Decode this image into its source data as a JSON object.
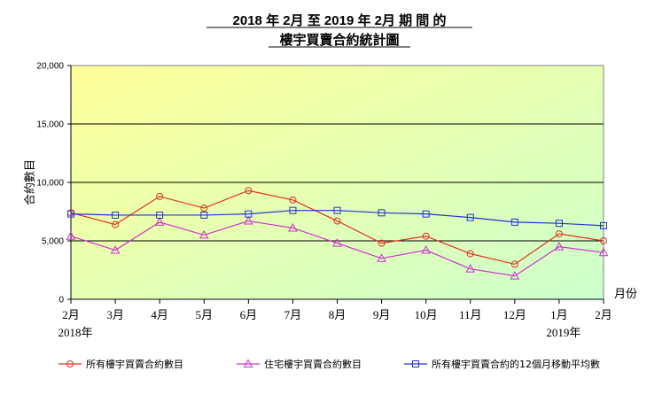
{
  "chart_data": {
    "type": "line",
    "title_line1": "2018 年 2月 至 2019 年 2月 期 間 的",
    "title_line2": "樓宇買賣合約統計圖",
    "ylabel": "合約數目",
    "xlabel": "月份",
    "ylim": [
      0,
      20000
    ],
    "yticks": [
      0,
      5000,
      10000,
      15000,
      20000
    ],
    "ytick_labels": [
      "0",
      "5,000",
      "10,000",
      "15,000",
      "20,000"
    ],
    "categories": [
      "2月",
      "3月",
      "4月",
      "5月",
      "6月",
      "7月",
      "8月",
      "9月",
      "10月",
      "11月",
      "12月",
      "1月",
      "2月"
    ],
    "year_labels": [
      "2018年",
      "2019年"
    ],
    "year_label_positions": [
      0,
      11
    ],
    "grid": true,
    "series": [
      {
        "name": "所有樓宇買賣合約數目",
        "color": "#e03020",
        "marker": "circle",
        "values": [
          7400,
          6400,
          8800,
          7800,
          9300,
          8500,
          6700,
          4800,
          5400,
          3900,
          3000,
          5600,
          5000
        ]
      },
      {
        "name": "住宅樓宇買賣合約數目",
        "color": "#cc33cc",
        "marker": "triangle",
        "values": [
          5400,
          4200,
          6600,
          5500,
          6700,
          6100,
          4800,
          3500,
          4200,
          2600,
          2000,
          4500,
          4000
        ]
      },
      {
        "name": "所有樓宇買賣合約的12個月移動平均數",
        "color": "#2233cc",
        "marker": "square",
        "values": [
          7300,
          7200,
          7200,
          7200,
          7300,
          7600,
          7600,
          7400,
          7300,
          7000,
          6600,
          6500,
          6300
        ]
      }
    ]
  }
}
